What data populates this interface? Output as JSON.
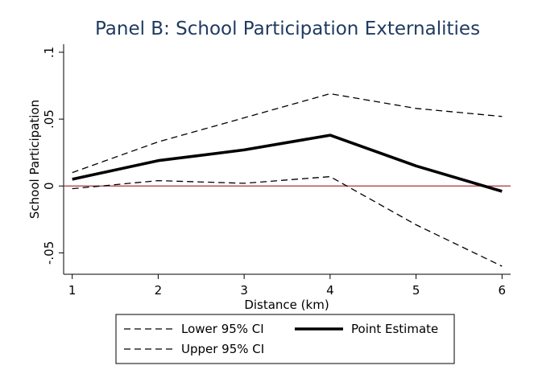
{
  "chart_data": {
    "type": "line",
    "title": "Panel B: School Participation Externalities",
    "xlabel": "Distance (km)",
    "ylabel": "School Participation",
    "x": [
      1,
      2,
      3,
      4,
      5,
      6
    ],
    "x_tick_labels": [
      "1",
      "2",
      "3",
      "4",
      "5",
      "6"
    ],
    "y_ticks": [
      -0.05,
      0,
      0.05,
      0.1
    ],
    "y_tick_labels": [
      "-.05",
      "0",
      ".05",
      ".1"
    ],
    "xlim": [
      0.9,
      6.1
    ],
    "ylim": [
      -0.066,
      0.106
    ],
    "series": [
      {
        "name": "Lower 95% CI",
        "style": "dashed",
        "color": "#000000",
        "values": [
          -0.002,
          0.004,
          0.002,
          0.007,
          -0.029,
          -0.06
        ]
      },
      {
        "name": "Point Estimate",
        "style": "solid-thick",
        "color": "#000000",
        "values": [
          0.005,
          0.019,
          0.027,
          0.038,
          0.015,
          -0.004
        ]
      },
      {
        "name": "Upper 95% CI",
        "style": "dashed",
        "color": "#000000",
        "values": [
          0.01,
          0.033,
          0.051,
          0.069,
          0.058,
          0.052
        ]
      }
    ],
    "reference_line": {
      "y": 0,
      "color": "#a8323e"
    },
    "legend": {
      "placement": "bottom",
      "entries": [
        {
          "label": "Lower 95% CI",
          "style": "dashed"
        },
        {
          "label": "Point Estimate",
          "style": "solid-thick"
        },
        {
          "label": "Upper 95% CI",
          "style": "dashed"
        }
      ]
    },
    "grid": false
  }
}
